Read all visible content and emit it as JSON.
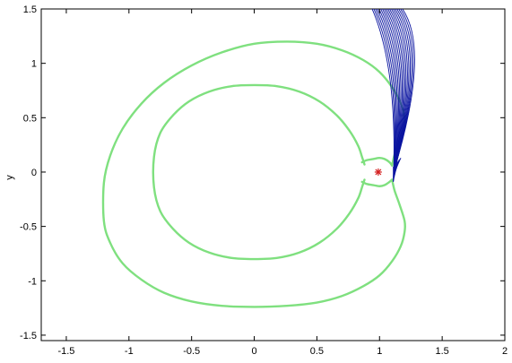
{
  "chart_data": {
    "type": "line",
    "title": "",
    "xlabel": "",
    "ylabel": "y",
    "xlim": [
      -1.7,
      2.0
    ],
    "ylim": [
      -1.55,
      1.5
    ],
    "xticks": [
      -1.5,
      -1,
      -0.5,
      0,
      0.5,
      1,
      1.5,
      2
    ],
    "xtick_labels": [
      "-1.5",
      "-1",
      "-0.5",
      "0",
      "0.5",
      "1",
      "1.5",
      "2"
    ],
    "yticks": [
      -1.5,
      -1,
      -0.5,
      0,
      0.5,
      1,
      1.5
    ],
    "ytick_labels": [
      "-1.5",
      "-1",
      "-0.5",
      "0",
      "0.5",
      "1",
      "1.5"
    ],
    "grid": false,
    "colors": {
      "zero_velocity_curve": "#7fe07f",
      "trajectories": "#0a14a0",
      "marker": "#d42020"
    },
    "series": [
      {
        "color": "#7fe07f",
        "x": [
          1.1,
          1.12,
          1.16,
          1.2,
          1.2,
          1.17,
          1.1,
          1.0,
          0.87,
          0.7,
          0.5,
          0.26,
          0.0,
          -0.26,
          -0.5,
          -0.72,
          -0.9,
          -1.05,
          -1.15,
          -1.2,
          -1.2,
          -1.15,
          -1.05,
          -0.9,
          -0.72,
          -0.5,
          -0.26,
          0.0,
          0.26,
          0.5,
          0.7,
          0.87,
          1.0,
          1.1,
          1.17,
          1.2,
          1.2,
          1.16,
          1.12,
          1.1
        ],
        "y": [
          -0.07,
          -0.17,
          -0.3,
          -0.45,
          -0.55,
          -0.68,
          -0.82,
          -0.95,
          -1.05,
          -1.14,
          -1.2,
          -1.23,
          -1.24,
          -1.23,
          -1.19,
          -1.11,
          -0.99,
          -0.84,
          -0.65,
          -0.45,
          -0.1,
          0.15,
          0.4,
          0.63,
          0.82,
          0.98,
          1.1,
          1.18,
          1.2,
          1.18,
          1.12,
          1.03,
          0.92,
          0.78,
          0.63,
          0.5,
          0.4,
          0.28,
          0.16,
          0.06
        ]
      },
      {
        "color": "#7fe07f",
        "x": [
          0.88,
          0.86,
          0.83,
          0.76,
          0.66,
          0.52,
          0.36,
          0.18,
          0.0,
          -0.18,
          -0.36,
          -0.52,
          -0.65,
          -0.75,
          -0.8,
          -0.8,
          -0.75,
          -0.65,
          -0.52,
          -0.36,
          -0.18,
          0.0,
          0.18,
          0.36,
          0.52,
          0.66,
          0.76,
          0.83,
          0.86,
          0.88
        ],
        "y": [
          -0.07,
          -0.14,
          -0.24,
          -0.38,
          -0.52,
          -0.65,
          -0.74,
          -0.79,
          -0.8,
          -0.79,
          -0.74,
          -0.65,
          -0.52,
          -0.36,
          -0.14,
          0.14,
          0.36,
          0.52,
          0.65,
          0.74,
          0.79,
          0.8,
          0.79,
          0.74,
          0.65,
          0.52,
          0.38,
          0.24,
          0.14,
          0.07
        ]
      },
      {
        "color": "#7fe07f",
        "x": [
          0.86,
          0.9,
          0.95,
          1.0,
          1.04,
          1.08,
          1.1
        ],
        "y": [
          0.09,
          0.11,
          0.12,
          0.13,
          0.12,
          0.09,
          0.06
        ]
      },
      {
        "color": "#7fe07f",
        "x": [
          0.86,
          0.9,
          0.95,
          1.0,
          1.04,
          1.08,
          1.1
        ],
        "y": [
          -0.09,
          -0.11,
          -0.12,
          -0.13,
          -0.12,
          -0.09,
          -0.07
        ]
      }
    ],
    "trajectories": {
      "color": "#0a14a0",
      "count": 18,
      "start_x": [
        1.11,
        1.12
      ],
      "start_y": [
        -0.09,
        0.03
      ],
      "control_x": [
        1.15,
        1.45
      ],
      "control_y": [
        1.05,
        1.3
      ],
      "end_x": [
        0.9,
        1.1
      ],
      "end_y": [
        1.5,
        1.5
      ]
    },
    "markers": [
      {
        "x": 0.99,
        "y": 0.0,
        "symbol": "*",
        "color": "#d42020"
      }
    ]
  }
}
